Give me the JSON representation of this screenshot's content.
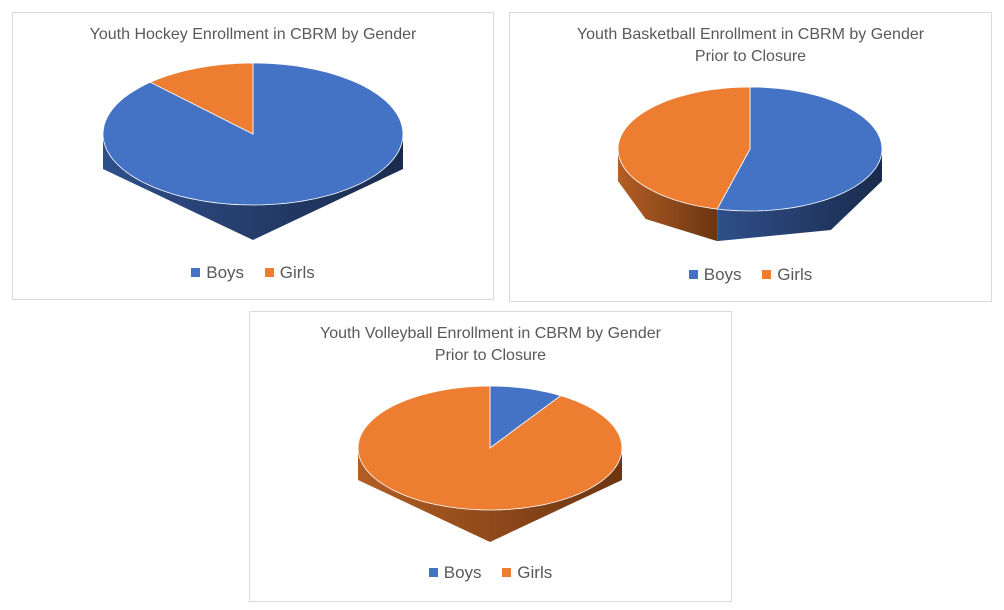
{
  "colors": {
    "boys": "#4472c4",
    "girls": "#ed7d31"
  },
  "chart_data": [
    {
      "type": "pie",
      "title": "Youth Hockey Enrollment in CBRM by Gender",
      "categories": [
        "Boys",
        "Girls"
      ],
      "values": [
        88,
        12
      ],
      "legend": "bottom"
    },
    {
      "type": "pie",
      "title": "Youth Basketball Enrollment in CBRM by Gender Prior to Closure",
      "title_lines": [
        "Youth Basketball Enrollment in CBRM by Gender",
        "Prior to Closure"
      ],
      "categories": [
        "Boys",
        "Girls"
      ],
      "values": [
        54,
        46
      ],
      "legend": "bottom"
    },
    {
      "type": "pie",
      "title": "Youth Volleyball Enrollment in CBRM by Gender Prior to Closure",
      "title_lines": [
        "Youth Volleyball Enrollment in CBRM by Gender",
        "Prior to Closure"
      ],
      "categories": [
        "Boys",
        "Girls"
      ],
      "values": [
        9,
        91
      ],
      "legend": "bottom"
    }
  ]
}
